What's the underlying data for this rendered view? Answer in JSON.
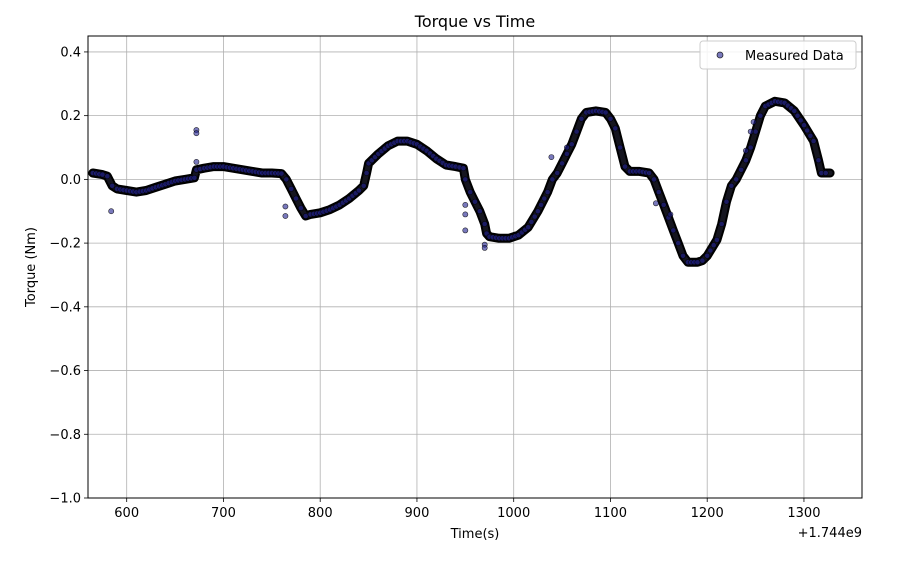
{
  "chart_data": {
    "type": "scatter",
    "title": "Torque vs Time",
    "xlabel": "Time(s)",
    "ylabel": "Torque (Nm)",
    "x_offset_label": "+1.744e9",
    "xlim": [
      560,
      1360
    ],
    "ylim": [
      -1.0,
      0.45
    ],
    "xticks": [
      600,
      700,
      800,
      900,
      1000,
      1100,
      1200,
      1300
    ],
    "xtick_labels": [
      "600",
      "700",
      "800",
      "900",
      "1000",
      "1100",
      "1200",
      "1300"
    ],
    "yticks": [
      0.4,
      0.2,
      0.0,
      -0.2,
      -0.4,
      -0.6,
      -0.8,
      -1.0
    ],
    "ytick_labels": [
      "0.4",
      "0.2",
      "0.0",
      "−0.2",
      "−0.4",
      "−0.6",
      "−0.8",
      "−1.0"
    ],
    "grid": true,
    "legend_position": "top-right",
    "series": [
      {
        "name": "Measured Data",
        "color": "#1f1f8f",
        "edge_color": "#000000",
        "curve": [
          [
            565,
            0.02
          ],
          [
            575,
            0.015
          ],
          [
            580,
            0.01
          ],
          [
            585,
            -0.02
          ],
          [
            590,
            -0.03
          ],
          [
            600,
            -0.035
          ],
          [
            610,
            -0.04
          ],
          [
            620,
            -0.035
          ],
          [
            630,
            -0.025
          ],
          [
            640,
            -0.015
          ],
          [
            650,
            -0.005
          ],
          [
            660,
            0.0
          ],
          [
            670,
            0.005
          ],
          [
            672,
            0.03
          ],
          [
            680,
            0.035
          ],
          [
            690,
            0.04
          ],
          [
            700,
            0.04
          ],
          [
            710,
            0.035
          ],
          [
            720,
            0.03
          ],
          [
            730,
            0.025
          ],
          [
            740,
            0.02
          ],
          [
            750,
            0.02
          ],
          [
            760,
            0.018
          ],
          [
            765,
            0.0
          ],
          [
            770,
            -0.03
          ],
          [
            775,
            -0.06
          ],
          [
            780,
            -0.09
          ],
          [
            785,
            -0.115
          ],
          [
            790,
            -0.11
          ],
          [
            800,
            -0.105
          ],
          [
            810,
            -0.095
          ],
          [
            820,
            -0.08
          ],
          [
            830,
            -0.06
          ],
          [
            840,
            -0.035
          ],
          [
            845,
            -0.02
          ],
          [
            848,
            0.02
          ],
          [
            850,
            0.05
          ],
          [
            860,
            0.08
          ],
          [
            870,
            0.105
          ],
          [
            880,
            0.12
          ],
          [
            890,
            0.12
          ],
          [
            900,
            0.11
          ],
          [
            910,
            0.09
          ],
          [
            920,
            0.065
          ],
          [
            930,
            0.045
          ],
          [
            940,
            0.04
          ],
          [
            948,
            0.035
          ],
          [
            950,
            0.0
          ],
          [
            955,
            -0.04
          ],
          [
            960,
            -0.07
          ],
          [
            965,
            -0.1
          ],
          [
            970,
            -0.14
          ],
          [
            972,
            -0.17
          ],
          [
            975,
            -0.18
          ],
          [
            985,
            -0.185
          ],
          [
            995,
            -0.185
          ],
          [
            1005,
            -0.175
          ],
          [
            1015,
            -0.15
          ],
          [
            1025,
            -0.1
          ],
          [
            1035,
            -0.04
          ],
          [
            1040,
            0.0
          ],
          [
            1045,
            0.02
          ],
          [
            1050,
            0.05
          ],
          [
            1055,
            0.08
          ],
          [
            1060,
            0.11
          ],
          [
            1065,
            0.15
          ],
          [
            1070,
            0.19
          ],
          [
            1075,
            0.21
          ],
          [
            1085,
            0.215
          ],
          [
            1095,
            0.21
          ],
          [
            1100,
            0.19
          ],
          [
            1105,
            0.16
          ],
          [
            1110,
            0.1
          ],
          [
            1115,
            0.04
          ],
          [
            1120,
            0.025
          ],
          [
            1130,
            0.025
          ],
          [
            1140,
            0.02
          ],
          [
            1145,
            0.0
          ],
          [
            1150,
            -0.04
          ],
          [
            1155,
            -0.08
          ],
          [
            1160,
            -0.12
          ],
          [
            1165,
            -0.16
          ],
          [
            1170,
            -0.2
          ],
          [
            1175,
            -0.24
          ],
          [
            1180,
            -0.26
          ],
          [
            1190,
            -0.26
          ],
          [
            1195,
            -0.255
          ],
          [
            1200,
            -0.24
          ],
          [
            1210,
            -0.19
          ],
          [
            1215,
            -0.14
          ],
          [
            1220,
            -0.07
          ],
          [
            1225,
            -0.02
          ],
          [
            1230,
            0.0
          ],
          [
            1235,
            0.03
          ],
          [
            1240,
            0.06
          ],
          [
            1245,
            0.1
          ],
          [
            1250,
            0.15
          ],
          [
            1255,
            0.2
          ],
          [
            1260,
            0.23
          ],
          [
            1270,
            0.245
          ],
          [
            1280,
            0.24
          ],
          [
            1290,
            0.215
          ],
          [
            1300,
            0.17
          ],
          [
            1310,
            0.12
          ],
          [
            1315,
            0.06
          ],
          [
            1318,
            0.02
          ],
          [
            1327,
            0.02
          ]
        ],
        "outliers": [
          [
            584,
            -0.1
          ],
          [
            672,
            0.155
          ],
          [
            672,
            0.145
          ],
          [
            672,
            0.055
          ],
          [
            764,
            -0.085
          ],
          [
            764,
            -0.115
          ],
          [
            950,
            -0.08
          ],
          [
            950,
            -0.11
          ],
          [
            950,
            -0.16
          ],
          [
            970,
            -0.205
          ],
          [
            970,
            -0.215
          ],
          [
            1039,
            0.07
          ],
          [
            1055,
            0.1
          ],
          [
            1147,
            -0.075
          ],
          [
            1162,
            -0.11
          ],
          [
            1240,
            0.09
          ],
          [
            1245,
            0.15
          ],
          [
            1248,
            0.18
          ]
        ]
      }
    ]
  }
}
